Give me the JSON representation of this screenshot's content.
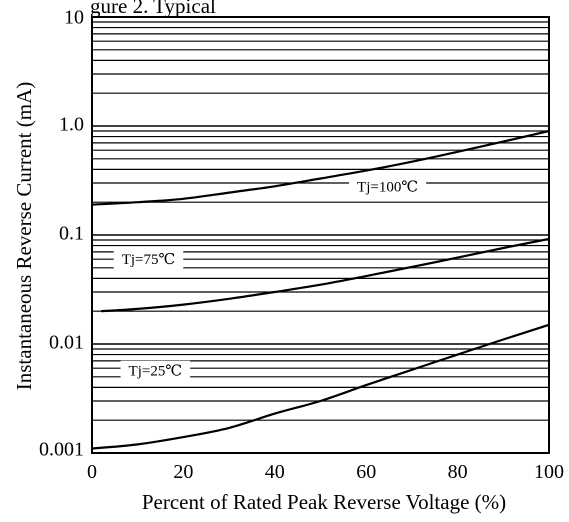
{
  "chart_data": {
    "type": "line",
    "title": "gure 2. Typical",
    "xlabel": "Percent of Rated Peak Reverse Voltage (%)",
    "ylabel": "Instantaneous Reverse Current (mA)",
    "x_scale": "linear",
    "y_scale": "log",
    "xlim": [
      0,
      100
    ],
    "ylim": [
      0.001,
      10
    ],
    "x_ticks": [
      "0",
      "20",
      "40",
      "60",
      "80",
      "100"
    ],
    "y_ticks": [
      "0.001",
      "0.01",
      "0.1",
      "1.0",
      "10"
    ],
    "grid": "horizontal, log minor lines",
    "series": [
      {
        "name": "Tj=100℃",
        "x": [
          0,
          10,
          20,
          30,
          40,
          50,
          60,
          70,
          80,
          90,
          100
        ],
        "y": [
          0.19,
          0.2,
          0.215,
          0.245,
          0.28,
          0.33,
          0.39,
          0.47,
          0.58,
          0.72,
          0.9
        ]
      },
      {
        "name": "Tj=75℃",
        "x": [
          2,
          10,
          20,
          30,
          40,
          50,
          60,
          70,
          80,
          90,
          100
        ],
        "y": [
          0.02,
          0.021,
          0.023,
          0.026,
          0.03,
          0.035,
          0.042,
          0.051,
          0.062,
          0.076,
          0.092
        ]
      },
      {
        "name": "Tj=25℃",
        "x": [
          0,
          10,
          20,
          30,
          40,
          50,
          60,
          70,
          80,
          90,
          100
        ],
        "y": [
          0.0011,
          0.0012,
          0.0014,
          0.0017,
          0.0023,
          0.003,
          0.0042,
          0.0058,
          0.008,
          0.011,
          0.015
        ]
      }
    ]
  }
}
